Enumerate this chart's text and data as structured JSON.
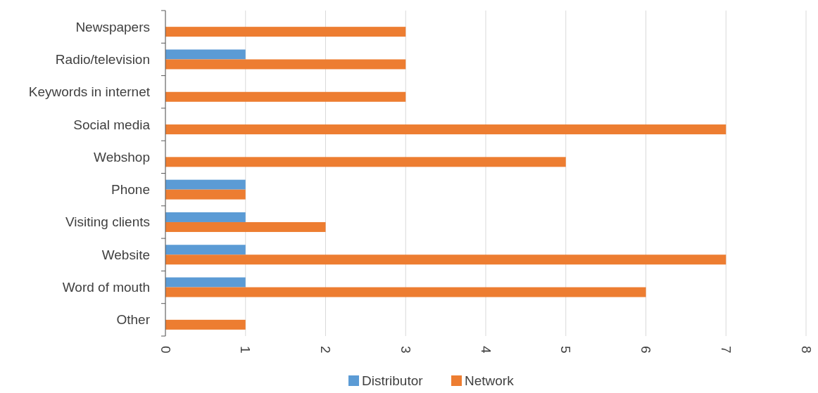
{
  "chart_data": {
    "type": "bar",
    "orientation": "horizontal",
    "categories": [
      "Newspapers",
      "Radio/television",
      "Keywords in internet",
      "Social media",
      "Webshop",
      "Phone",
      "Visiting clients",
      "Website",
      "Word of mouth",
      "Other"
    ],
    "series": [
      {
        "name": "Distributor",
        "color": "#5b9bd5",
        "values": [
          0,
          1,
          0,
          0,
          0,
          1,
          1,
          1,
          1,
          0
        ]
      },
      {
        "name": "Network",
        "color": "#ed7d31",
        "values": [
          3,
          3,
          3,
          7,
          5,
          1,
          2,
          7,
          6,
          1
        ]
      }
    ],
    "xlim": [
      0,
      8
    ],
    "xticks": [
      0,
      1,
      2,
      3,
      4,
      5,
      6,
      7,
      8
    ],
    "grid": "x",
    "legend": "bottom"
  }
}
